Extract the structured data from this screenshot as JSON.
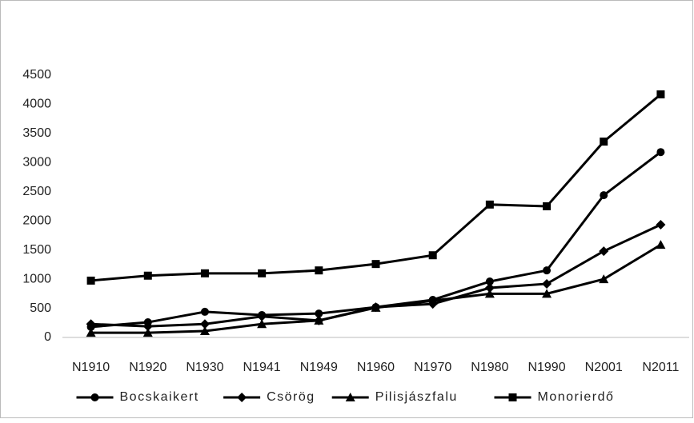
{
  "chart_data": {
    "type": "line",
    "categories": [
      "N1910",
      "N1920",
      "N1930",
      "N1941",
      "N1949",
      "N1960",
      "N1970",
      "N1980",
      "N1990",
      "N2001",
      "N2011"
    ],
    "series": [
      {
        "name": "Bocskaikert",
        "color": "#000000",
        "marker": "circle",
        "values": [
          180,
          260,
          440,
          385,
          410,
          520,
          645,
          960,
          1150,
          2440,
          3180
        ]
      },
      {
        "name": "Csörög",
        "color": "#000000",
        "marker": "diamond",
        "values": [
          230,
          190,
          230,
          360,
          290,
          520,
          575,
          850,
          920,
          1480,
          1935
        ]
      },
      {
        "name": "Pilisjászfalu",
        "color": "#000000",
        "marker": "triangle",
        "values": [
          80,
          80,
          110,
          230,
          290,
          510,
          630,
          750,
          750,
          1000,
          1590
        ]
      },
      {
        "name": "Monorierdő",
        "color": "#000000",
        "marker": "square",
        "values": [
          975,
          1060,
          1100,
          1100,
          1150,
          1260,
          1410,
          2280,
          2250,
          3360,
          4170
        ]
      }
    ],
    "ylim": [
      0,
      4500
    ],
    "yticks": [
      0,
      500,
      1000,
      1500,
      2000,
      2500,
      3000,
      3500,
      4000,
      4500
    ],
    "grid": false,
    "legend": "bottom"
  }
}
